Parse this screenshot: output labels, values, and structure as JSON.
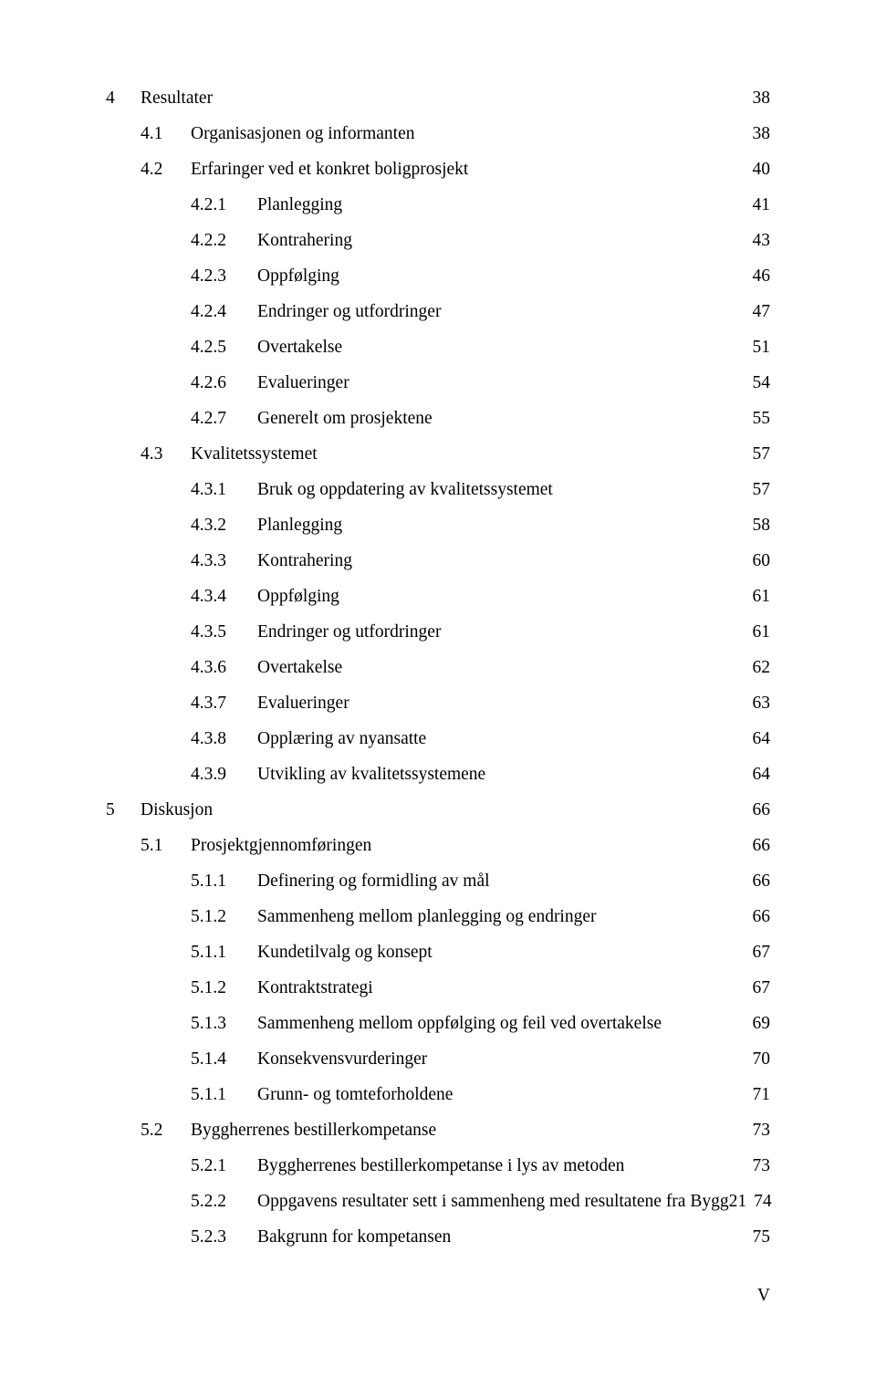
{
  "page_number_label": "V",
  "font": {
    "family": "Times New Roman",
    "size_pt": 12,
    "color": "#000000"
  },
  "background_color": "#ffffff",
  "toc": [
    {
      "level": 0,
      "num": "4",
      "title": "Resultater",
      "page": "38"
    },
    {
      "level": 1,
      "num": "4.1",
      "title": "Organisasjonen og informanten",
      "page": "38"
    },
    {
      "level": 1,
      "num": "4.2",
      "title": "Erfaringer ved et konkret boligprosjekt",
      "page": "40"
    },
    {
      "level": 2,
      "num": "4.2.1",
      "title": "Planlegging",
      "page": "41"
    },
    {
      "level": 2,
      "num": "4.2.2",
      "title": "Kontrahering",
      "page": "43"
    },
    {
      "level": 2,
      "num": "4.2.3",
      "title": "Oppfølging",
      "page": "46"
    },
    {
      "level": 2,
      "num": "4.2.4",
      "title": "Endringer og utfordringer",
      "page": "47"
    },
    {
      "level": 2,
      "num": "4.2.5",
      "title": "Overtakelse",
      "page": "51"
    },
    {
      "level": 2,
      "num": "4.2.6",
      "title": "Evalueringer",
      "page": "54"
    },
    {
      "level": 2,
      "num": "4.2.7",
      "title": "Generelt om prosjektene",
      "page": "55"
    },
    {
      "level": 1,
      "num": "4.3",
      "title": "Kvalitetssystemet",
      "page": "57"
    },
    {
      "level": 2,
      "num": "4.3.1",
      "title": "Bruk og oppdatering av kvalitetssystemet",
      "page": "57"
    },
    {
      "level": 2,
      "num": "4.3.2",
      "title": "Planlegging",
      "page": "58"
    },
    {
      "level": 2,
      "num": "4.3.3",
      "title": "Kontrahering",
      "page": "60"
    },
    {
      "level": 2,
      "num": "4.3.4",
      "title": "Oppfølging",
      "page": "61"
    },
    {
      "level": 2,
      "num": "4.3.5",
      "title": "Endringer og utfordringer",
      "page": "61"
    },
    {
      "level": 2,
      "num": "4.3.6",
      "title": "Overtakelse",
      "page": "62"
    },
    {
      "level": 2,
      "num": "4.3.7",
      "title": "Evalueringer",
      "page": "63"
    },
    {
      "level": 2,
      "num": "4.3.8",
      "title": "Opplæring av nyansatte",
      "page": "64"
    },
    {
      "level": 2,
      "num": "4.3.9",
      "title": "Utvikling av kvalitetssystemene",
      "page": "64"
    },
    {
      "level": 0,
      "num": "5",
      "title": "Diskusjon",
      "page": "66"
    },
    {
      "level": 1,
      "num": "5.1",
      "title": "Prosjektgjennomføringen",
      "page": "66"
    },
    {
      "level": 2,
      "num": "5.1.1",
      "title": "Definering og formidling av mål",
      "page": "66"
    },
    {
      "level": 2,
      "num": "5.1.2",
      "title": "Sammenheng mellom planlegging og endringer",
      "page": "66"
    },
    {
      "level": 2,
      "num": "5.1.1",
      "title": "Kundetilvalg og konsept",
      "page": "67"
    },
    {
      "level": 2,
      "num": "5.1.2",
      "title": "Kontraktstrategi",
      "page": "67"
    },
    {
      "level": 2,
      "num": "5.1.3",
      "title": "Sammenheng mellom oppfølging og feil ved overtakelse",
      "page": "69"
    },
    {
      "level": 2,
      "num": "5.1.4",
      "title": "Konsekvensvurderinger",
      "page": "70"
    },
    {
      "level": 2,
      "num": "5.1.1",
      "title": "Grunn- og tomteforholdene",
      "page": "71"
    },
    {
      "level": 1,
      "num": "5.2",
      "title": "Byggherrenes bestillerkompetanse",
      "page": "73"
    },
    {
      "level": 2,
      "num": "5.2.1",
      "title": "Byggherrenes bestillerkompetanse i lys av metoden",
      "page": "73"
    },
    {
      "level": 2,
      "num": "5.2.2",
      "title": "Oppgavens resultater sett i sammenheng med resultatene fra Bygg21",
      "page": "74"
    },
    {
      "level": 2,
      "num": "5.2.3",
      "title": "Bakgrunn for kompetansen",
      "page": "75"
    }
  ]
}
